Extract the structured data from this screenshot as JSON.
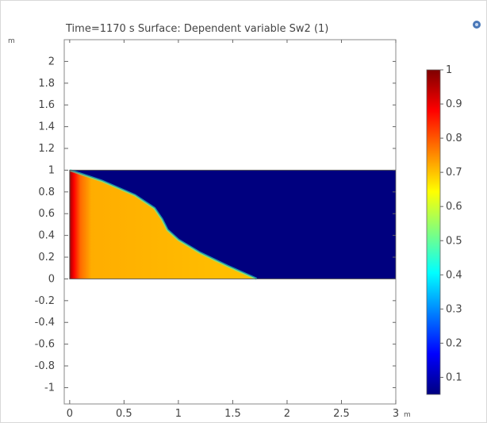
{
  "chart_data": {
    "type": "heatmap",
    "title": "Time=1170 s   Surface: Dependent variable Sw2 (1)",
    "x_unit": "m",
    "y_unit": "m",
    "xlim": [
      -0.05,
      3.0
    ],
    "ylim": [
      -1.15,
      2.2
    ],
    "x_ticks": [
      0,
      0.5,
      1,
      1.5,
      2,
      2.5,
      3
    ],
    "x_tick_labels": [
      "0",
      "0.5",
      "1",
      "1.5",
      "2",
      "2.5",
      "3"
    ],
    "y_ticks": [
      2,
      1.8,
      1.6,
      1.4,
      1.2,
      1,
      0.8,
      0.6,
      0.4,
      0.2,
      0,
      -0.2,
      -0.4,
      -0.6,
      -0.8,
      -1
    ],
    "y_tick_labels": [
      "2",
      "1.8",
      "1.6",
      "1.4",
      "1.2",
      "1",
      "0.8",
      "0.6",
      "0.4",
      "0.2",
      "0",
      "-0.2",
      "-0.4",
      "-0.6",
      "-0.8",
      "-1"
    ],
    "domain": {
      "x": [
        0,
        3
      ],
      "y": [
        0,
        1
      ]
    },
    "background_value": 0.05,
    "front_curve": [
      {
        "x": 0.0,
        "y": 1.0
      },
      {
        "x": 0.3,
        "y": 0.9
      },
      {
        "x": 0.6,
        "y": 0.77
      },
      {
        "x": 0.78,
        "y": 0.65
      },
      {
        "x": 0.85,
        "y": 0.55
      },
      {
        "x": 0.9,
        "y": 0.45
      },
      {
        "x": 1.0,
        "y": 0.36
      },
      {
        "x": 1.2,
        "y": 0.24
      },
      {
        "x": 1.45,
        "y": 0.12
      },
      {
        "x": 1.72,
        "y": 0.0
      }
    ],
    "inlet_values": [
      {
        "x": 0.0,
        "value": 0.97
      },
      {
        "x": 0.04,
        "value": 0.88
      },
      {
        "x": 0.1,
        "value": 0.78
      },
      {
        "x": 0.2,
        "value": 0.72
      }
    ],
    "colorbar": {
      "min": 0.05,
      "max": 1.0,
      "ticks": [
        1,
        0.9,
        0.8,
        0.7,
        0.6,
        0.5,
        0.4,
        0.3,
        0.2,
        0.1
      ],
      "tick_labels": [
        "1",
        "0.9",
        "0.8",
        "0.7",
        "0.6",
        "0.5",
        "0.4",
        "0.3",
        "0.2",
        "0.1"
      ],
      "colormap": [
        "#00007f",
        "#0000ff",
        "#007fff",
        "#00ffff",
        "#7fff7f",
        "#ffff00",
        "#ff7f00",
        "#ff0000",
        "#7f0000"
      ]
    },
    "grid": false,
    "legend": "right"
  }
}
